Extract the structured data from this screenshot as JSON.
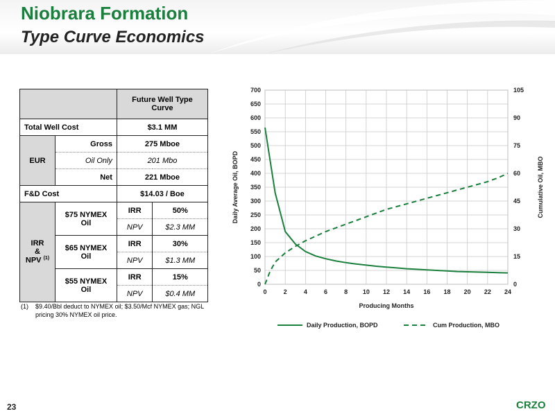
{
  "header": {
    "title": "Niobrara Formation",
    "subtitle": "Type Curve Economics"
  },
  "table": {
    "col_header": "Future Well Type Curve",
    "total_well_cost": {
      "label": "Total Well Cost",
      "value": "$3.1 MM"
    },
    "eur": {
      "label": "EUR",
      "rows": [
        {
          "label": "Gross",
          "value": "275 Mboe"
        },
        {
          "label": "Oil Only",
          "value": "201 Mbo"
        },
        {
          "label": "Net",
          "value": "221 Mboe"
        }
      ]
    },
    "fd_cost": {
      "label": "F&D Cost",
      "value": "$14.03 / Boe"
    },
    "irr_npv": {
      "label_line1": "IRR",
      "label_line2": "&",
      "label_line3": "NPV",
      "label_sup": "(1)",
      "cases": [
        {
          "label": "$75 NYMEX Oil",
          "irr_label": "IRR",
          "irr": "50%",
          "npv_label": "NPV",
          "npv": "$2.3 MM"
        },
        {
          "label": "$65 NYMEX Oil",
          "irr_label": "IRR",
          "irr": "30%",
          "npv_label": "NPV",
          "npv": "$1.3 MM"
        },
        {
          "label": "$55 NYMEX Oil",
          "irr_label": "IRR",
          "irr": "15%",
          "npv_label": "NPV",
          "npv": "$0.4 MM"
        }
      ]
    }
  },
  "footnote": {
    "number": "(1)",
    "text": "$9.40/Bbl deduct to NYMEX oil; $3.50/Mcf NYMEX gas; NGL pricing 30% NYMEX oil price."
  },
  "chart_data": {
    "type": "line",
    "xlabel": "Producing Months",
    "ylabel": "Daily Average Oil, BOPD",
    "y2label": "Cumulative Oil, MBO",
    "xlim": [
      0,
      24
    ],
    "ylim": [
      0,
      700
    ],
    "y2lim": [
      0,
      105
    ],
    "xticks": [
      0,
      2,
      4,
      6,
      8,
      10,
      12,
      14,
      16,
      18,
      20,
      22,
      24
    ],
    "yticks": [
      0,
      50,
      100,
      150,
      200,
      250,
      300,
      350,
      400,
      450,
      500,
      550,
      600,
      650,
      700
    ],
    "y2ticks": [
      0,
      15,
      30,
      45,
      60,
      75,
      90,
      105
    ],
    "grid": true,
    "legend": "bottom",
    "series": [
      {
        "name": "Daily Production, BOPD",
        "axis": "left",
        "style": "solid",
        "color": "#1a7f3c",
        "x": [
          0,
          1,
          2,
          3,
          4,
          5,
          6,
          7,
          8,
          9,
          10,
          11,
          12,
          13,
          14,
          15,
          16,
          17,
          18,
          19,
          20,
          21,
          22,
          23,
          24
        ],
        "values": [
          565,
          330,
          190,
          145,
          118,
          102,
          92,
          84,
          78,
          73,
          69,
          65,
          62,
          59,
          56,
          54,
          52,
          50,
          48,
          46,
          45,
          44,
          43,
          42,
          41
        ]
      },
      {
        "name": "Cum Production, MBO",
        "axis": "right",
        "style": "dashed",
        "color": "#1a7f3c",
        "x": [
          0,
          0.5,
          1,
          2,
          3,
          4,
          5,
          6,
          7,
          8,
          9,
          10,
          11,
          12,
          13,
          14,
          15,
          16,
          17,
          18,
          19,
          20,
          21,
          22,
          23,
          24
        ],
        "values": [
          0,
          7,
          12,
          17,
          20.5,
          23.5,
          26,
          28.5,
          30.5,
          32.5,
          34.5,
          36.5,
          38.5,
          40.5,
          42,
          43.5,
          45,
          46.5,
          48,
          49.5,
          51,
          52.5,
          54,
          55.5,
          57.5,
          60
        ]
      }
    ]
  },
  "footer": {
    "page_number": "23",
    "logo": "CRZO"
  }
}
